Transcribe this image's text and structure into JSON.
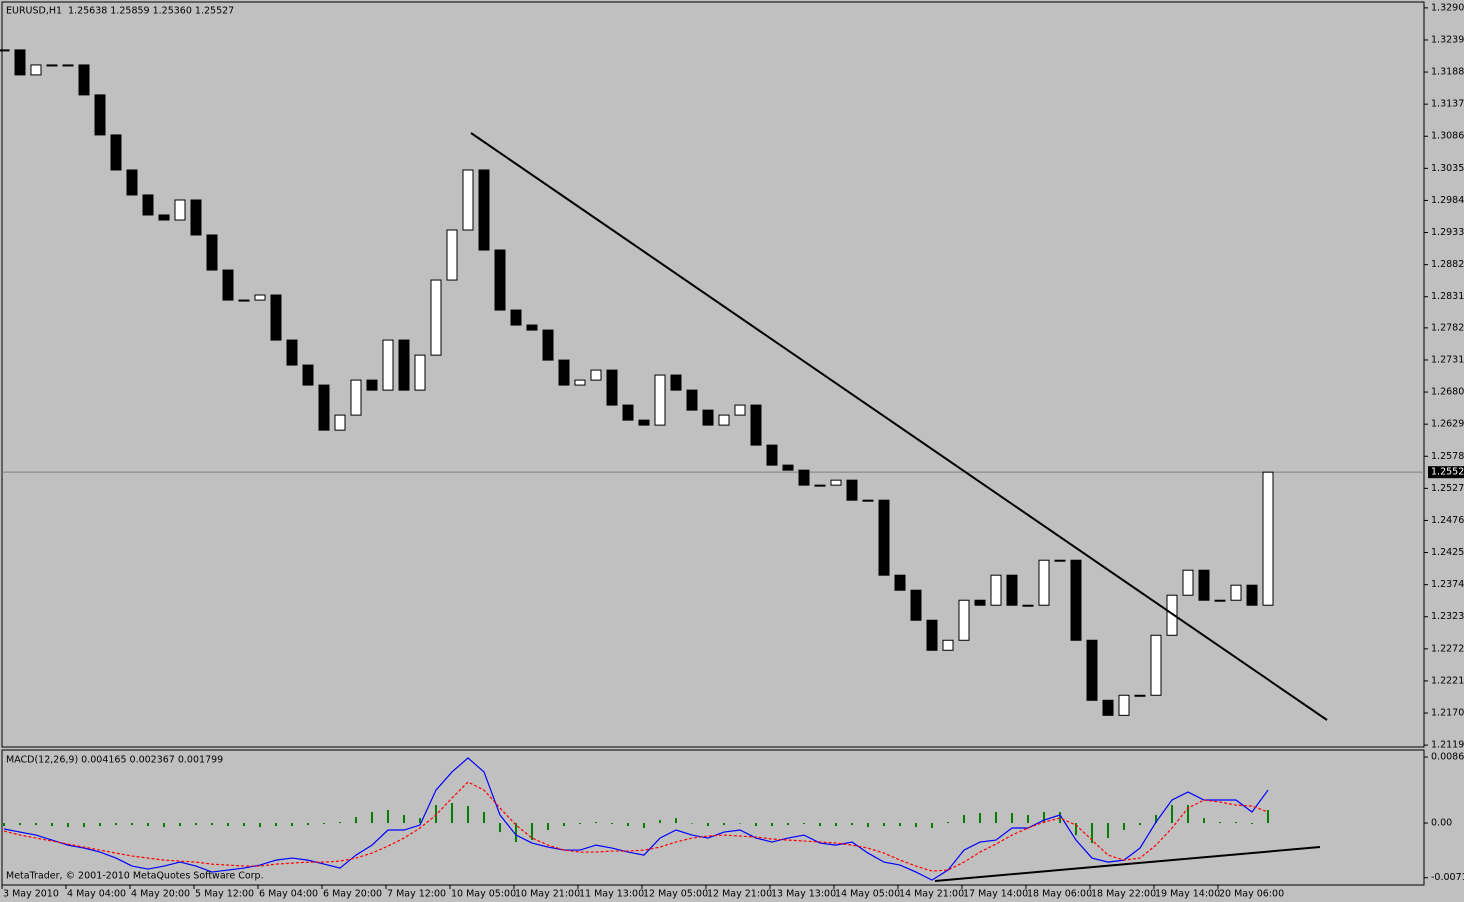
{
  "chart_data": [
    {
      "type": "candlestick",
      "title": "EURUSD,H1",
      "ohlc_label": "1.25638 1.25859 1.25360 1.25527",
      "categories": [
        "3 May 2010",
        null,
        null,
        null,
        "4 May 04:00",
        null,
        null,
        null,
        "4 May 20:00",
        null,
        null,
        null,
        "5 May 12:00",
        null,
        null,
        null,
        "6 May 04:00",
        null,
        null,
        null,
        "6 May 20:00",
        null,
        null,
        null,
        "7 May 12:00",
        null,
        null,
        null,
        "10 May 05:00",
        null,
        null,
        null,
        "10 May 21:00",
        null,
        null,
        null,
        "11 May 13:00",
        null,
        null,
        null,
        "12 May 05:00",
        null,
        null,
        null,
        "12 May 21:00",
        null,
        null,
        null,
        "13 May 13:00",
        null,
        null,
        null,
        "14 May 05:00",
        null,
        null,
        null,
        "14 May 21:00",
        null,
        null,
        null,
        "17 May 14:00",
        null,
        null,
        null,
        "18 May 06:00",
        null,
        null,
        null,
        "18 May 22:00",
        null,
        null,
        null,
        "19 May 14:00",
        null,
        null,
        null,
        "20 May 06:00",
        null,
        null,
        null
      ],
      "values": [
        1.32237,
        1.3184,
        1.31998,
        1.31998,
        1.31998,
        1.31522,
        1.30886,
        1.30329,
        1.29932,
        1.29614,
        1.29534,
        1.29852,
        1.29296,
        1.28739,
        1.28262,
        1.28262,
        1.28342,
        1.27626,
        1.27229,
        1.26911,
        1.26195,
        1.26434,
        1.2699,
        1.26831,
        1.27626,
        1.26831,
        1.27387,
        1.2858,
        1.29375,
        1.30329,
        1.29057,
        1.28103,
        1.27865,
        1.27785,
        1.27308,
        1.26911,
        1.2699,
        1.27149,
        1.26593,
        1.26354,
        1.26275,
        1.2707,
        1.26831,
        1.26513,
        1.26275,
        1.26434,
        1.26593,
        1.25957,
        1.25639,
        1.25559,
        1.25321,
        1.25321,
        1.254,
        1.25082,
        1.25082,
        1.2389,
        1.23651,
        1.23174,
        1.22697,
        1.22856,
        1.23492,
        1.23413,
        1.2389,
        1.23413,
        1.23413,
        1.24128,
        1.24128,
        1.22856,
        1.21902,
        1.21663,
        1.21982,
        1.21982,
        1.22935,
        1.23572,
        1.23969,
        1.23492,
        1.23492,
        1.23731,
        1.23413,
        1.25527
      ],
      "bull_color": "#ffffff",
      "bear_color": "#000000",
      "current_price": 1.25527,
      "ylim": [
        1.2116,
        1.3303
      ],
      "yticks": [
        1.32905,
        1.32395,
        1.31885,
        1.31375,
        1.30865,
        1.30355,
        1.29845,
        1.29335,
        1.28825,
        1.28315,
        {
          "value": 1.2782,
          "label": "1.27820"
        },
        {
          "value": 1.2731,
          "label": "1.27310"
        },
        {
          "value": 1.268,
          "label": "1.26800"
        },
        {
          "value": 1.2629,
          "label": "1.26290"
        },
        {
          "value": 1.2578,
          "label": "1.25780"
        },
        {
          "value": 1.2527,
          "label": "1.25270"
        },
        {
          "value": 1.2476,
          "label": "1.24760"
        },
        {
          "value": 1.2425,
          "label": "1.24250"
        },
        {
          "value": 1.2374,
          "label": "1.23740"
        },
        {
          "value": 1.2323,
          "label": "1.23230"
        },
        {
          "value": 1.2272,
          "label": "1.22720"
        },
        {
          "value": 1.2221,
          "label": "1.22210"
        },
        {
          "value": 1.217,
          "label": "1.21700"
        },
        {
          "value": 1.2119,
          "label": "1.21190"
        }
      ]
    },
    {
      "type": "macd",
      "title": "MACD(12,26,9) 0.004165 0.002367 0.001799",
      "ylim": [
        -0.00809,
        0.00954
      ],
      "yticks": [
        0.008624,
        {
          "value": 0,
          "label": "0.00"
        },
        -0.00714
      ],
      "series": [
        {
          "kind": "bar",
          "color": "#008000",
          "values": [
            -0.00039,
            -0.00026,
            -0.00026,
            -0.00039,
            -0.00052,
            -0.00052,
            -0.00039,
            -0.00026,
            -0.00026,
            -0.00039,
            -0.00052,
            -0.00039,
            -0.00026,
            -0.00026,
            -0.00039,
            -0.00039,
            -0.00052,
            -0.00039,
            -0.00039,
            -0.00026,
            -0.00013,
            0.00013,
            0.00078,
            0.00144,
            0.0017,
            0.00105,
            0.00065,
            0.00235,
            0.00261,
            0.00222,
            0.00144,
            -0.00118,
            -0.00248,
            -0.00222,
            -0.00091,
            -0.00039,
            -0.00013,
            0.00013,
            -0.00013,
            -0.00039,
            -0.00065,
            0.00039,
            0.00065,
            0,
            -0.00039,
            -0.00026,
            0,
            -0.00039,
            -0.00039,
            -0.00026,
            -0.00013,
            -0.00039,
            -0.00039,
            -0.00026,
            -0.00052,
            -0.00039,
            -0.00039,
            -0.00052,
            -0.00065,
            0.00013,
            0.00105,
            0.00131,
            0.00144,
            0.00131,
            0.00105,
            0.00144,
            0.00144,
            -0.00157,
            -0.00261,
            -0.00196,
            -0.00091,
            -0.00026,
            0.00105,
            0.00235,
            0.00235,
            0.00065,
            0.00013,
            0.00013,
            -0.00013,
            0.0017
          ]
        },
        {
          "kind": "line",
          "color": "#0000ff",
          "values": [
            -0.00078,
            -0.00118,
            -0.00157,
            -0.00222,
            -0.00288,
            -0.00327,
            -0.00379,
            -0.00457,
            -0.00562,
            -0.00601,
            -0.00562,
            -0.0051,
            -0.00562,
            -0.0064,
            -0.00614,
            -0.00588,
            -0.00549,
            -0.00484,
            -0.00457,
            -0.00484,
            -0.00536,
            -0.00588,
            -0.00418,
            -0.00288,
            -0.00091,
            -0.00091,
            -0.00026,
            0.00431,
            0.00667,
            0.0085,
            0.00667,
            0.00105,
            -0.00157,
            -0.00261,
            -0.00314,
            -0.00353,
            -0.00353,
            -0.00288,
            -0.00327,
            -0.00379,
            -0.00418,
            -0.00196,
            -0.00091,
            -0.00157,
            -0.00196,
            -0.00118,
            -0.00091,
            -0.00196,
            -0.00248,
            -0.00196,
            -0.00157,
            -0.00261,
            -0.00288,
            -0.00248,
            -0.00392,
            -0.0051,
            -0.00549,
            -0.0064,
            -0.00745,
            -0.00614,
            -0.00353,
            -0.00248,
            -0.00222,
            -0.00065,
            -0.00065,
            0.00039,
            0.00105,
            -0.00222,
            -0.00457,
            -0.0051,
            -0.00484,
            -0.00327,
            0.00013,
            0.00301,
            0.00405,
            0.00301,
            0.00301,
            0.00301,
            0.00144,
            0.00431
          ]
        },
        {
          "kind": "dashed",
          "color": "#ff0000",
          "values": [
            -0.00105,
            -0.00157,
            -0.00196,
            -0.00235,
            -0.00274,
            -0.00314,
            -0.00353,
            -0.00392,
            -0.00431,
            -0.00457,
            -0.00484,
            -0.00497,
            -0.0051,
            -0.00536,
            -0.00549,
            -0.00562,
            -0.00562,
            -0.00536,
            -0.00523,
            -0.0051,
            -0.0051,
            -0.00497,
            -0.00457,
            -0.00392,
            -0.00301,
            -0.00196,
            -0.00065,
            0.00105,
            0.00327,
            0.00536,
            0.00431,
            0.00196,
            -0.00026,
            -0.00196,
            -0.00288,
            -0.00353,
            -0.00379,
            -0.00379,
            -0.00366,
            -0.00366,
            -0.00353,
            -0.00314,
            -0.00248,
            -0.00196,
            -0.0017,
            -0.00157,
            -0.0017,
            -0.00183,
            -0.00209,
            -0.00222,
            -0.00235,
            -0.00248,
            -0.00261,
            -0.00288,
            -0.00327,
            -0.00392,
            -0.00484,
            -0.00562,
            -0.00627,
            -0.00614,
            -0.0051,
            -0.00379,
            -0.00274,
            -0.00157,
            -0.00065,
            0.00013,
            0.00065,
            -0.00026,
            -0.00222,
            -0.00418,
            -0.00484,
            -0.00457,
            -0.00288,
            -0.00065,
            0.00196,
            0.00301,
            0.00274,
            0.00235,
            0.00222,
            0.00144
          ]
        }
      ]
    }
  ],
  "footer": "MetaTrader, © 2001-2010 MetaQuotes Software Corp."
}
